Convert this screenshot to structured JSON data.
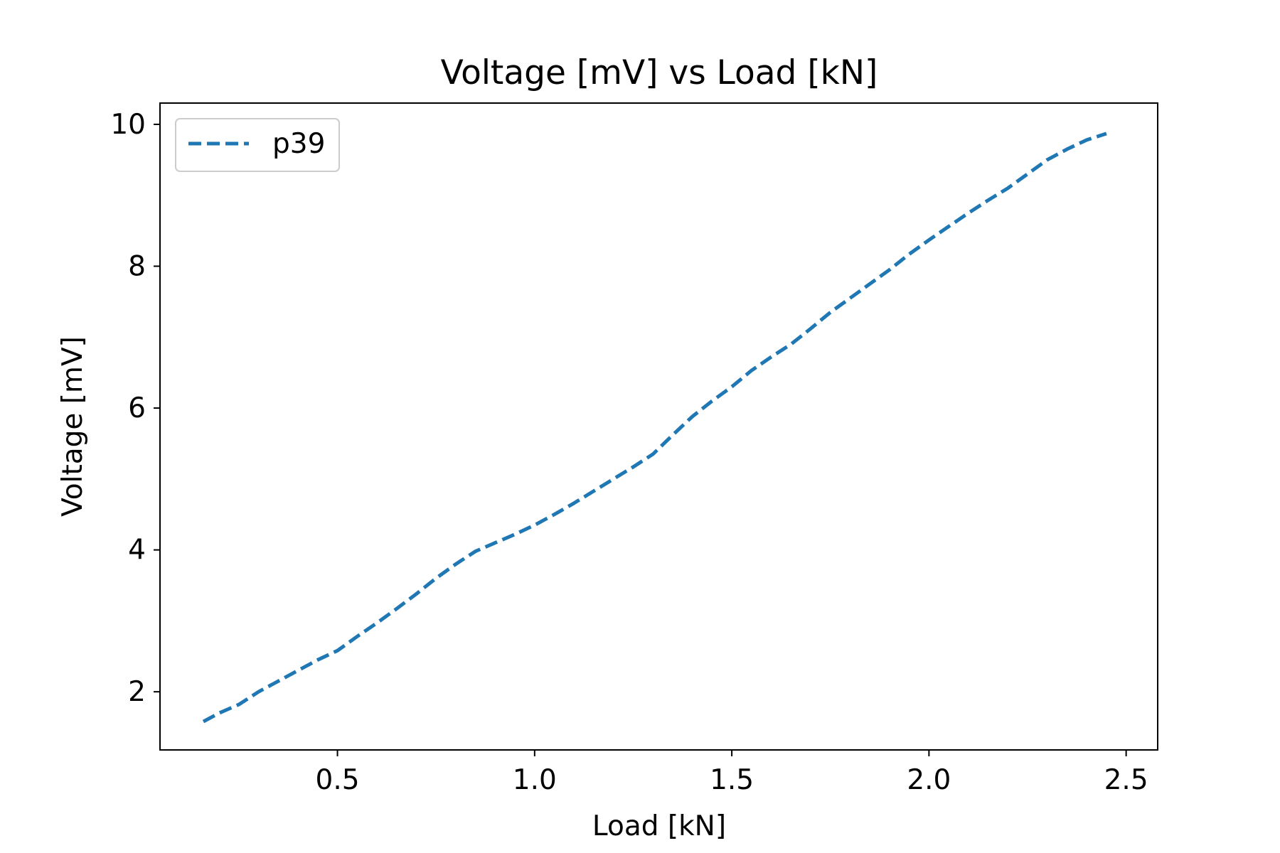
{
  "chart_data": {
    "type": "line",
    "title": "Voltage [mV] vs Load [kN]",
    "xlabel": "Load [kN]",
    "ylabel": "Voltage [mV]",
    "xlim": [
      0.05,
      2.58
    ],
    "ylim": [
      1.18,
      10.3
    ],
    "xticks": [
      0.5,
      1.0,
      1.5,
      2.0,
      2.5
    ],
    "xtick_labels": [
      "0.5",
      "1.0",
      "1.5",
      "2.0",
      "2.5"
    ],
    "yticks": [
      2,
      4,
      6,
      8,
      10
    ],
    "ytick_labels": [
      "2",
      "4",
      "6",
      "8",
      "10"
    ],
    "grid": false,
    "legend_position": "upper-left",
    "series": [
      {
        "name": "p39",
        "color": "#1f77b4",
        "line_style": "dashed",
        "x": [
          0.16,
          0.2,
          0.25,
          0.3,
          0.35,
          0.4,
          0.45,
          0.5,
          0.55,
          0.6,
          0.65,
          0.7,
          0.75,
          0.8,
          0.85,
          0.9,
          0.95,
          1.0,
          1.05,
          1.1,
          1.15,
          1.2,
          1.25,
          1.3,
          1.35,
          1.4,
          1.45,
          1.5,
          1.55,
          1.6,
          1.65,
          1.7,
          1.75,
          1.8,
          1.85,
          1.9,
          1.95,
          2.0,
          2.05,
          2.1,
          2.15,
          2.2,
          2.25,
          2.3,
          2.35,
          2.4,
          2.45
        ],
        "y": [
          1.58,
          1.7,
          1.82,
          2.0,
          2.15,
          2.3,
          2.45,
          2.58,
          2.78,
          2.97,
          3.17,
          3.38,
          3.6,
          3.8,
          3.98,
          4.1,
          4.22,
          4.35,
          4.5,
          4.66,
          4.83,
          5.0,
          5.17,
          5.35,
          5.62,
          5.88,
          6.1,
          6.3,
          6.53,
          6.72,
          6.9,
          7.12,
          7.35,
          7.55,
          7.75,
          7.95,
          8.17,
          8.37,
          8.56,
          8.75,
          8.93,
          9.1,
          9.3,
          9.5,
          9.65,
          9.78,
          9.87
        ]
      }
    ]
  }
}
